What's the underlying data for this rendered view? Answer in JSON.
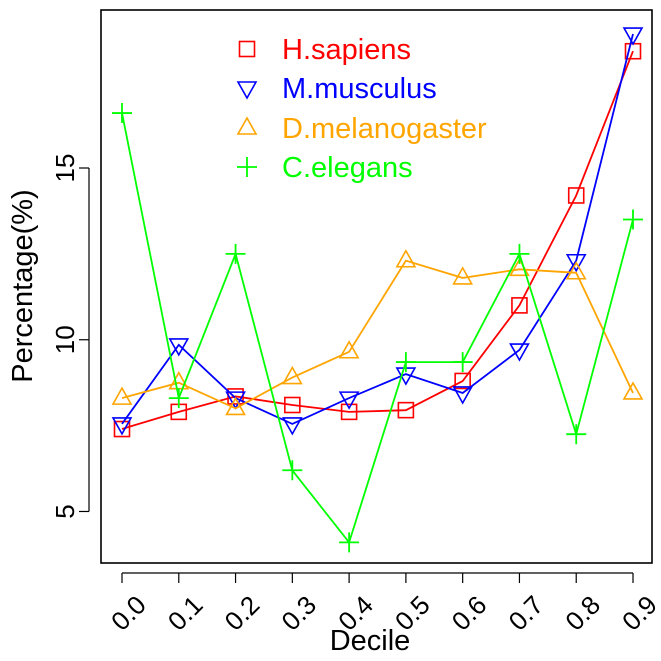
{
  "chart_data": {
    "type": "line",
    "title": "",
    "xlabel": "Decile",
    "ylabel": "Percentage(%)",
    "x": [
      0.0,
      0.1,
      0.2,
      0.3,
      0.4,
      0.5,
      0.6,
      0.7,
      0.8,
      0.9
    ],
    "x_tick_labels": [
      "0.0",
      "0.1",
      "0.2",
      "0.3",
      "0.4",
      "0.5",
      "0.6",
      "0.7",
      "0.8",
      "0.9"
    ],
    "y_ticks": [
      5,
      10,
      15
    ],
    "y_tick_labels": [
      "5",
      "10",
      "15"
    ],
    "ylim": [
      3.5,
      19.6
    ],
    "grid": false,
    "legend_position": "top-center",
    "series": [
      {
        "name": "H.sapiens",
        "color": "#ff0000",
        "marker": "square",
        "values": [
          7.4,
          7.9,
          8.35,
          8.1,
          7.9,
          7.95,
          8.8,
          11.0,
          14.2,
          18.4
        ]
      },
      {
        "name": "M.musculus",
        "color": "#0000ff",
        "marker": "triangle-down",
        "values": [
          7.55,
          9.85,
          8.3,
          7.55,
          8.3,
          9.0,
          8.45,
          9.7,
          12.3,
          18.9
        ]
      },
      {
        "name": "D.melanogaster",
        "color": "#ffa500",
        "marker": "triangle-up",
        "values": [
          8.3,
          8.75,
          8.0,
          8.9,
          9.65,
          12.3,
          11.8,
          12.05,
          11.95,
          8.45
        ]
      },
      {
        "name": "C.elegans",
        "color": "#00ff00",
        "marker": "plus",
        "values": [
          16.6,
          8.3,
          12.5,
          6.2,
          4.1,
          9.35,
          9.35,
          12.5,
          7.25,
          13.5
        ]
      }
    ]
  }
}
